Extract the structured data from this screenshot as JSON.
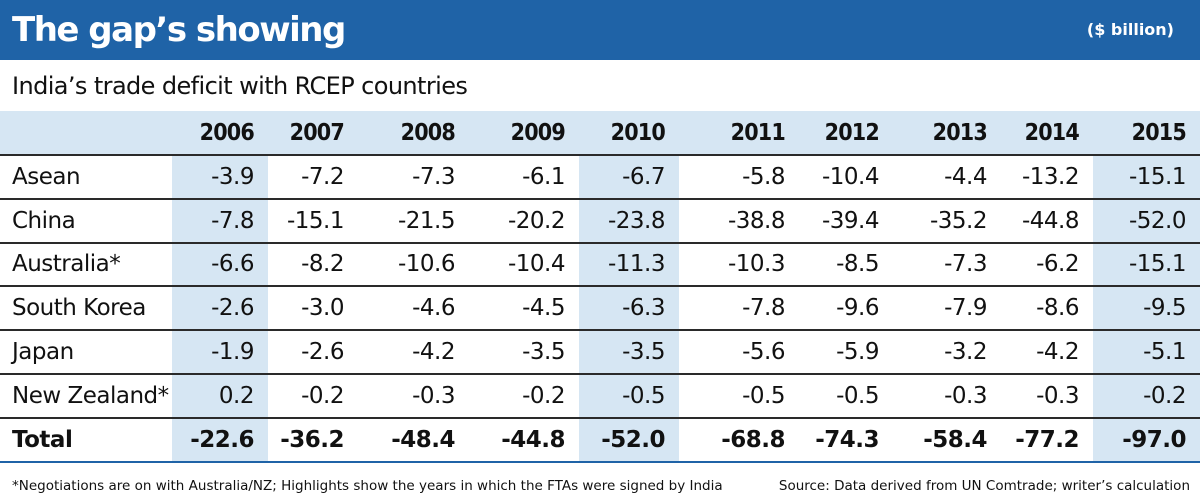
{
  "header": {
    "title": "The gap’s showing",
    "unit": "($ billion)",
    "subtitle": "India’s trade deficit with RCEP countries"
  },
  "chart_data": {
    "type": "table",
    "title": "The gap’s showing",
    "subtitle": "India’s trade deficit with RCEP countries",
    "unit": "($ billion)",
    "columns": [
      "2006",
      "2007",
      "2008",
      "2009",
      "2010",
      "2011",
      "2012",
      "2013",
      "2014",
      "2015"
    ],
    "highlighted_columns": [
      "2006",
      "2010",
      "2015"
    ],
    "rows": [
      {
        "label": "Asean",
        "values": [
          "-3.9",
          "-7.2",
          "-7.3",
          "-6.1",
          "-6.7",
          "-5.8",
          "-10.4",
          "-4.4",
          "-13.2",
          "-15.1"
        ]
      },
      {
        "label": "China",
        "values": [
          "-7.8",
          "-15.1",
          "-21.5",
          "-20.2",
          "-23.8",
          "-38.8",
          "-39.4",
          "-35.2",
          "-44.8",
          "-52.0"
        ]
      },
      {
        "label": "Australia*",
        "values": [
          "-6.6",
          "-8.2",
          "-10.6",
          "-10.4",
          "-11.3",
          "-10.3",
          "-8.5",
          "-7.3",
          "-6.2",
          "-15.1"
        ]
      },
      {
        "label": "South Korea",
        "values": [
          "-2.6",
          "-3.0",
          "-4.6",
          "-4.5",
          "-6.3",
          "-7.8",
          "-9.6",
          "-7.9",
          "-8.6",
          "-9.5"
        ]
      },
      {
        "label": "Japan",
        "values": [
          "-1.9",
          "-2.6",
          "-4.2",
          "-3.5",
          "-3.5",
          "-5.6",
          "-5.9",
          "-3.2",
          "-4.2",
          "-5.1"
        ]
      },
      {
        "label": "New Zealand*",
        "values": [
          "0.2",
          "-0.2",
          "-0.3",
          "-0.2",
          "-0.5",
          "-0.5",
          "-0.5",
          "-0.3",
          "-0.3",
          "-0.2"
        ]
      },
      {
        "label": "Total",
        "values": [
          "-22.6",
          "-36.2",
          "-48.4",
          "-44.8",
          "-52.0",
          "-68.8",
          "-74.3",
          "-58.4",
          "-77.2",
          "-97.0"
        ]
      }
    ]
  },
  "footer": {
    "footnote": "*Negotiations are on with Australia/NZ; Highlights show the years in which the FTAs were signed by India",
    "source": "Source: Data derived from UN Comtrade; writer’s calculation"
  },
  "colors": {
    "title_bar": "#1f63a7",
    "highlight": "#d6e6f3",
    "text": "#111111"
  }
}
